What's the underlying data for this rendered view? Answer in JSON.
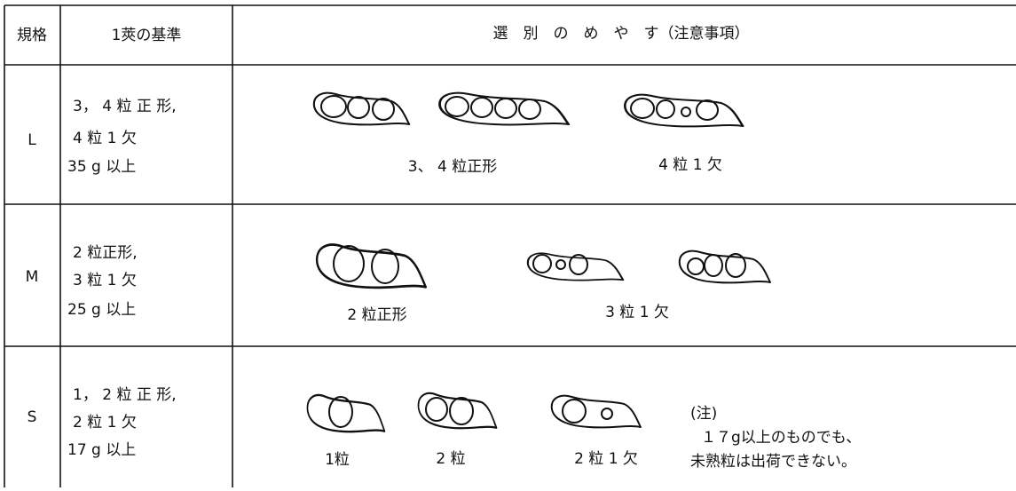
{
  "table": {
    "header": [
      "規格",
      "1莢の基準",
      "選　別　の　め　や　す（注意事項）"
    ],
    "rows": [
      {
        "grade": "L",
        "criteria": [
          "3， 4 粒 正 形,",
          "4 粒 1 欠",
          "35 g 以上"
        ],
        "examples": [
          "3、 4 粒正形",
          "4 粒 1 欠"
        ]
      },
      {
        "grade": "M",
        "criteria": [
          "2 粒正形,",
          "3 粒 1 欠",
          "25 g 以上"
        ],
        "examples": [
          "2 粒正形",
          "3 粒 1 欠"
        ]
      },
      {
        "grade": "S",
        "criteria": [
          "1， 2 粒 正 形,",
          "2 粒 1 欠",
          "17 g 以上"
        ],
        "examples": [
          "1粒",
          "2 粒",
          "2 粒 1 欠"
        ],
        "note": [
          "(注)",
          "１７g以上のものでも、",
          "未熟粒は出荷できない。"
        ]
      }
    ]
  }
}
